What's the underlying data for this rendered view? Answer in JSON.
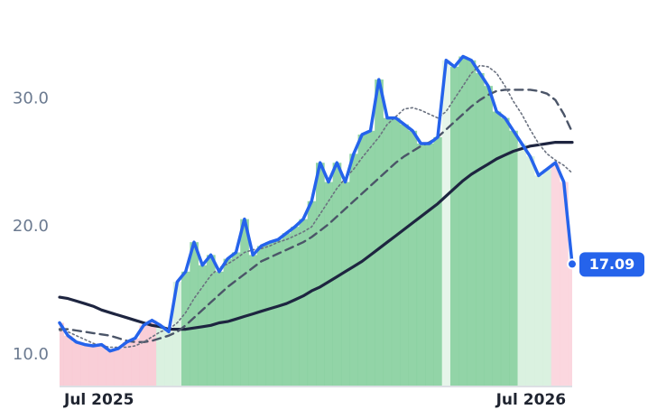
{
  "chart_data": {
    "type": "line",
    "xlim": [
      0,
      61
    ],
    "xticks": [
      {
        "value": 4.7,
        "label": "Jul 2025"
      },
      {
        "value": 56.1,
        "label": "Jul 2026"
      }
    ],
    "ylim": [
      7.6,
      36.3
    ],
    "yticks": [
      {
        "value": 10,
        "label": "10.0"
      },
      {
        "value": 20,
        "label": "20.0"
      },
      {
        "value": 30,
        "label": "30.0"
      }
    ],
    "grid": false,
    "series": [
      {
        "color": "#2563eb",
        "style": "solid",
        "width": 3.5,
        "values": [
          12.5,
          11.5,
          11.0,
          10.8,
          10.7,
          10.8,
          10.3,
          10.5,
          11.0,
          11.3,
          12.3,
          12.7,
          12.3,
          11.8,
          15.7,
          16.5,
          18.8,
          17.0,
          17.8,
          16.5,
          17.5,
          18.0,
          20.6,
          17.8,
          18.5,
          18.8,
          19.0,
          19.5,
          20.0,
          20.6,
          22.0,
          25.0,
          23.5,
          25.0,
          23.5,
          25.7,
          27.2,
          27.5,
          31.5,
          28.5,
          28.5,
          28.0,
          27.5,
          26.5,
          26.5,
          27.0,
          33.0,
          32.5,
          33.3,
          33.0,
          32.0,
          31.0,
          29.0,
          28.5,
          27.5,
          26.5,
          25.5,
          24.0,
          24.5,
          25.0,
          23.5,
          17.09
        ],
        "bar_colors": [
          "#f8c9d3",
          "#f8c9d3",
          "#f8c9d3",
          "#f8c9d3",
          "#f8c9d3",
          "#f8c9d3",
          "#f8c9d3",
          "#f8c9d3",
          "#f8c9d3",
          "#f8c9d3",
          "#f8c9d3",
          "#f8c9d3",
          "#d6efdd",
          "#d6efdd",
          "#d6efdd",
          "#86cf9d",
          "#86cf9d",
          "#86cf9d",
          "#86cf9d",
          "#86cf9d",
          "#86cf9d",
          "#86cf9d",
          "#86cf9d",
          "#86cf9d",
          "#86cf9d",
          "#86cf9d",
          "#86cf9d",
          "#86cf9d",
          "#86cf9d",
          "#86cf9d",
          "#86cf9d",
          "#86cf9d",
          "#86cf9d",
          "#86cf9d",
          "#86cf9d",
          "#86cf9d",
          "#86cf9d",
          "#86cf9d",
          "#86cf9d",
          "#86cf9d",
          "#86cf9d",
          "#86cf9d",
          "#86cf9d",
          "#86cf9d",
          "#86cf9d",
          "#86cf9d",
          "#e3f4e8",
          "#86cf9d",
          "#86cf9d",
          "#86cf9d",
          "#86cf9d",
          "#86cf9d",
          "#86cf9d",
          "#86cf9d",
          "#86cf9d",
          "#d6efdd",
          "#d6efdd",
          "#d6efdd",
          "#d6efdd",
          "#fbd3dc",
          "#fbd3dc",
          "#fbd3dc"
        ]
      },
      {
        "color": "#6b7280",
        "style": "dotted",
        "width": 1.6,
        "values": [
          11.9,
          11.8,
          11.5,
          11.2,
          10.9,
          10.7,
          10.6,
          10.6,
          10.6,
          10.7,
          11.0,
          11.4,
          11.8,
          12.0,
          12.5,
          13.3,
          14.4,
          15.3,
          16.2,
          16.8,
          17.1,
          17.5,
          18.0,
          18.2,
          18.3,
          18.5,
          18.8,
          19.0,
          19.3,
          19.6,
          20.0,
          21.0,
          22.0,
          23.0,
          23.8,
          24.5,
          25.4,
          26.2,
          27.0,
          28.0,
          28.6,
          29.2,
          29.3,
          29.1,
          28.8,
          28.5,
          29.0,
          30.0,
          31.0,
          32.0,
          32.6,
          32.5,
          32.0,
          31.0,
          29.8,
          28.8,
          27.6,
          26.5,
          25.7,
          25.2,
          24.8,
          24.2
        ]
      },
      {
        "color": "#4b5568",
        "style": "dashed",
        "width": 2.4,
        "values": [
          12.0,
          12.0,
          11.9,
          11.8,
          11.7,
          11.6,
          11.5,
          11.3,
          11.1,
          11.0,
          11.0,
          11.1,
          11.3,
          11.5,
          11.8,
          12.3,
          12.9,
          13.5,
          14.1,
          14.7,
          15.3,
          15.8,
          16.3,
          16.8,
          17.3,
          17.6,
          17.9,
          18.2,
          18.5,
          18.8,
          19.2,
          19.7,
          20.2,
          20.8,
          21.4,
          22.0,
          22.6,
          23.2,
          23.8,
          24.4,
          25.0,
          25.5,
          25.9,
          26.3,
          26.6,
          27.0,
          27.6,
          28.2,
          28.8,
          29.4,
          29.9,
          30.3,
          30.6,
          30.7,
          30.7,
          30.7,
          30.7,
          30.6,
          30.4,
          29.9,
          28.8,
          27.4
        ]
      },
      {
        "color": "#1e2540",
        "style": "solid",
        "width": 3.2,
        "values": [
          14.5,
          14.4,
          14.2,
          14.0,
          13.8,
          13.5,
          13.3,
          13.1,
          12.9,
          12.7,
          12.5,
          12.3,
          12.2,
          12.0,
          12.0,
          12.0,
          12.1,
          12.2,
          12.3,
          12.5,
          12.6,
          12.8,
          13.0,
          13.2,
          13.4,
          13.6,
          13.8,
          14.0,
          14.3,
          14.6,
          15.0,
          15.3,
          15.7,
          16.1,
          16.5,
          16.9,
          17.3,
          17.8,
          18.3,
          18.8,
          19.3,
          19.8,
          20.3,
          20.8,
          21.3,
          21.8,
          22.4,
          23.0,
          23.6,
          24.1,
          24.5,
          24.9,
          25.3,
          25.6,
          25.9,
          26.1,
          26.3,
          26.4,
          26.5,
          26.6,
          26.6,
          26.6
        ]
      }
    ]
  }
}
